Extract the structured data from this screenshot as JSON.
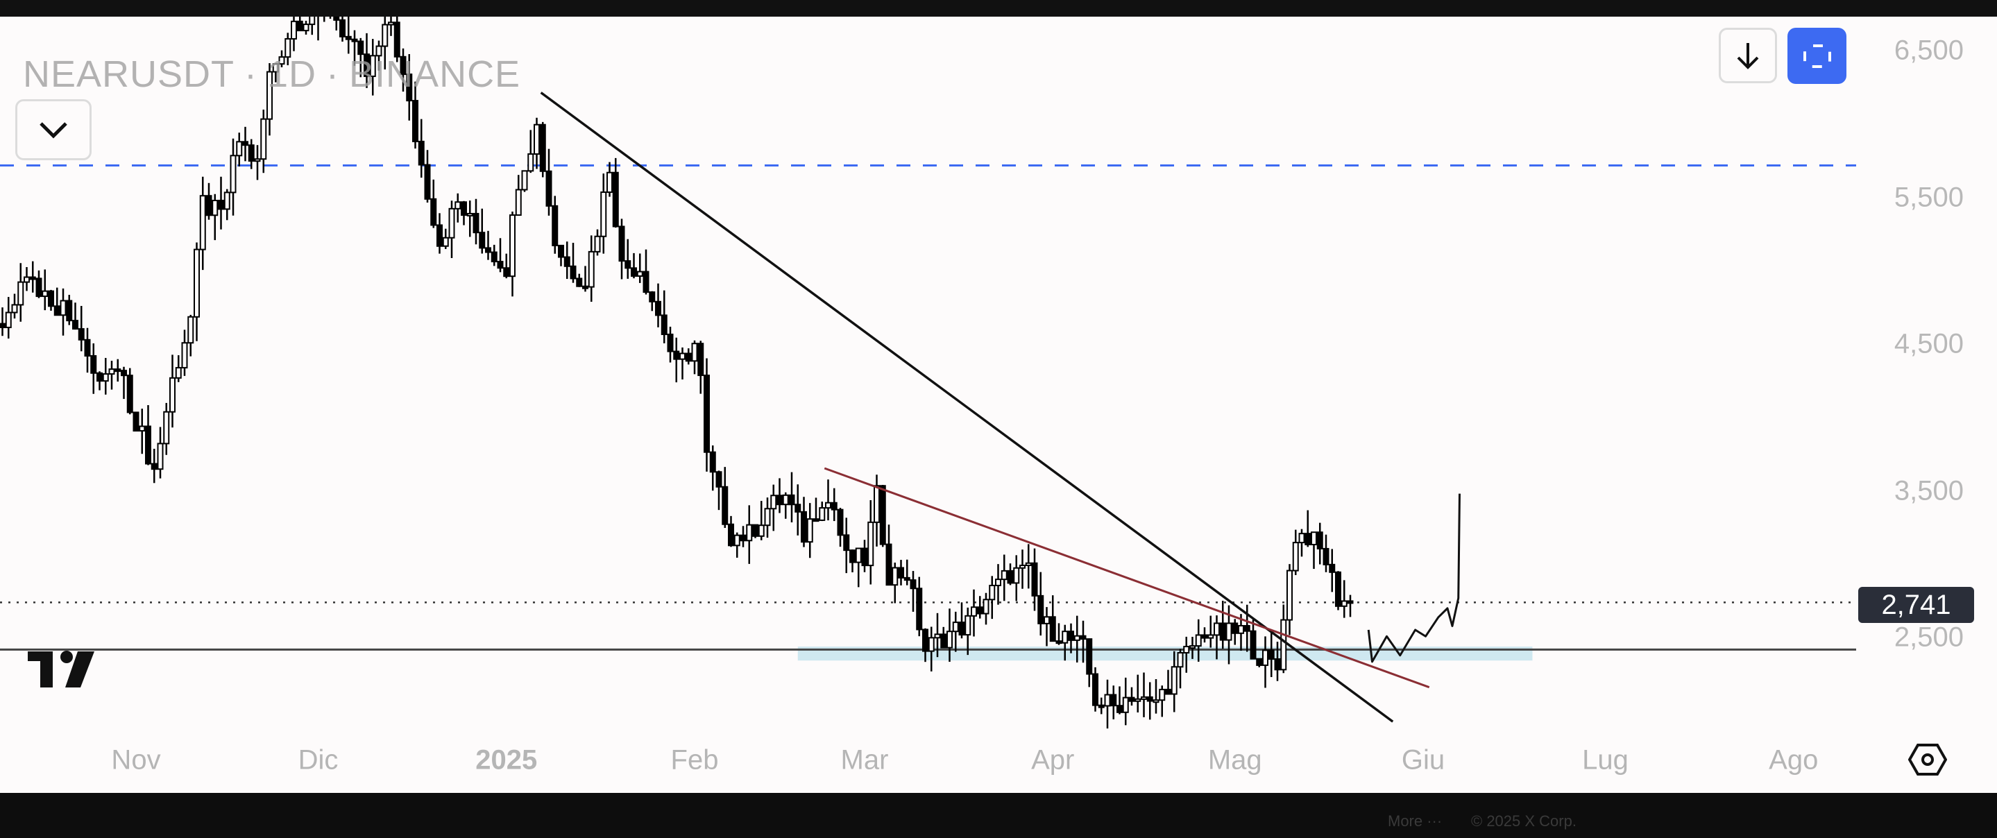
{
  "header": {
    "symbol": "NEARUSDT",
    "interval": "1D",
    "exchange": "BINANCE",
    "separator": "·"
  },
  "buttons": {
    "dropdown": "chevron-down-icon",
    "download": "arrow-down-icon",
    "fullscreen": "fullscreen-icon",
    "settings": "settings-hexagon-icon"
  },
  "footer": {
    "more": "More ···",
    "copyright": "© 2025 X Corp."
  },
  "colors": {
    "accent": "#3d6af2",
    "candle": "#000000",
    "trendline": "#111111",
    "red_trendline": "#8b2e34",
    "support_zone": "#cfe8f0",
    "price_tag": "#2a2e39"
  },
  "chart_data": {
    "type": "candlestick",
    "title": "NEARUSDT · 1D · BINANCE",
    "time_origin": "2024-11-01",
    "time_unit": "days since origin",
    "ylim": [
      1900,
      6800
    ],
    "yticks": [
      "6,500",
      "5,500",
      "4,500",
      "3,500",
      "2,500"
    ],
    "ytick_values": [
      6500,
      5500,
      4500,
      3500,
      2500
    ],
    "xticks": [
      {
        "label": "Nov",
        "t": 0
      },
      {
        "label": "Dic",
        "t": 30
      },
      {
        "label": "2025",
        "t": 61,
        "bold": true
      },
      {
        "label": "Feb",
        "t": 92
      },
      {
        "label": "Mar",
        "t": 120
      },
      {
        "label": "Apr",
        "t": 151
      },
      {
        "label": "Mag",
        "t": 181
      },
      {
        "label": "Giu",
        "t": 212
      },
      {
        "label": "Lug",
        "t": 242
      },
      {
        "label": "Ago",
        "t": 273
      }
    ],
    "last_price": 2741,
    "last_price_label": "2,741",
    "close_path": [
      [
        -22,
        4640
      ],
      [
        -18,
        4980
      ],
      [
        -14,
        4810
      ],
      [
        -10,
        4680
      ],
      [
        -7,
        4250
      ],
      [
        -3,
        4330
      ],
      [
        0,
        3990
      ],
      [
        3,
        3640
      ],
      [
        6,
        4250
      ],
      [
        9,
        4680
      ],
      [
        11,
        5460
      ],
      [
        14,
        5370
      ],
      [
        17,
        5890
      ],
      [
        20,
        5720
      ],
      [
        22,
        6330
      ],
      [
        26,
        6700
      ],
      [
        32,
        6800
      ],
      [
        38,
        6330
      ],
      [
        42,
        6700
      ],
      [
        47,
        5720
      ],
      [
        50,
        5200
      ],
      [
        53,
        5460
      ],
      [
        57,
        5200
      ],
      [
        61,
        5030
      ],
      [
        63,
        5630
      ],
      [
        66,
        5980
      ],
      [
        69,
        5200
      ],
      [
        71,
        5030
      ],
      [
        74,
        4940
      ],
      [
        76,
        5290
      ],
      [
        78,
        5720
      ],
      [
        80,
        5030
      ],
      [
        83,
        5030
      ],
      [
        87,
        4590
      ],
      [
        89,
        4330
      ],
      [
        92,
        4500
      ],
      [
        93,
        4250
      ],
      [
        94,
        3720
      ],
      [
        96,
        3460
      ],
      [
        98,
        3200
      ],
      [
        101,
        3200
      ],
      [
        104,
        3380
      ],
      [
        107,
        3460
      ],
      [
        110,
        3200
      ],
      [
        113,
        3460
      ],
      [
        115,
        3380
      ],
      [
        117,
        3030
      ],
      [
        120,
        3030
      ],
      [
        122,
        3460
      ],
      [
        124,
        2940
      ],
      [
        127,
        2940
      ],
      [
        130,
        2420
      ],
      [
        133,
        2510
      ],
      [
        137,
        2600
      ],
      [
        140,
        2770
      ],
      [
        144,
        2940
      ],
      [
        147,
        2940
      ],
      [
        149,
        2600
      ],
      [
        153,
        2510
      ],
      [
        156,
        2420
      ],
      [
        158,
        2080
      ],
      [
        161,
        2030
      ],
      [
        164,
        2120
      ],
      [
        167,
        2030
      ],
      [
        169,
        2120
      ],
      [
        172,
        2340
      ],
      [
        176,
        2550
      ],
      [
        179,
        2510
      ],
      [
        182,
        2550
      ],
      [
        185,
        2380
      ],
      [
        188,
        2290
      ],
      [
        189,
        2680
      ],
      [
        191,
        3200
      ],
      [
        193,
        3200
      ],
      [
        196,
        3030
      ],
      [
        198,
        2770
      ],
      [
        200,
        2741
      ]
    ],
    "drawings": {
      "horizontal_dashed_blue": 5718,
      "horizontal_support": 2420,
      "downtrend_line": [
        [
          66.7,
          6214
        ],
        [
          207,
          1929
        ]
      ],
      "red_trendline": [
        [
          113.4,
          3655
        ],
        [
          213,
          2163
        ]
      ],
      "support_zone": {
        "t": [
          109,
          230
        ],
        "price": [
          2345,
          2440
        ]
      },
      "hand_drawn_projection": [
        [
          203,
          2554
        ],
        [
          203.6,
          2337
        ],
        [
          206,
          2510
        ],
        [
          208.2,
          2380
        ],
        [
          210.7,
          2554
        ],
        [
          212.4,
          2510
        ],
        [
          214.5,
          2640
        ],
        [
          216,
          2701
        ],
        [
          216.8,
          2580
        ],
        [
          217.8,
          2770
        ],
        [
          218,
          3482
        ]
      ]
    }
  }
}
